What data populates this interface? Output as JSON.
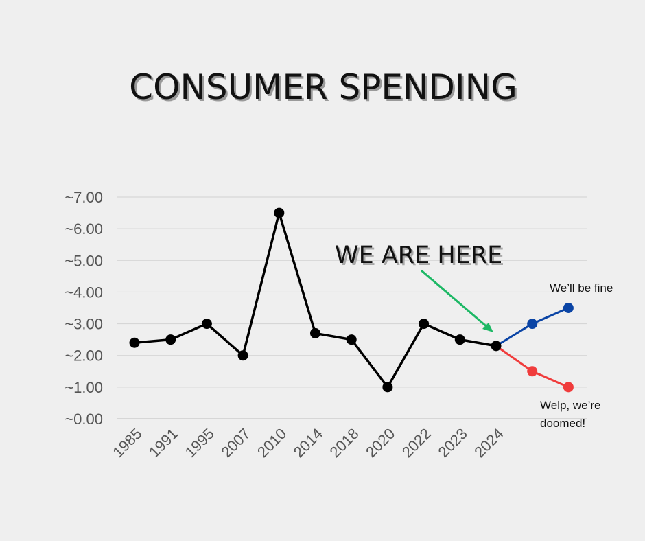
{
  "chart_data": {
    "type": "line",
    "title": "CONSUMER SPENDING",
    "categories": [
      "1985",
      "1991",
      "1995",
      "2007",
      "2010",
      "2014",
      "2018",
      "2020",
      "2022",
      "2023",
      "2024"
    ],
    "y_tick_labels": [
      "~0.00",
      "~1.00",
      "~2.00",
      "~3.00",
      "~4.00",
      "~5.00",
      "~6.00",
      "~7.00"
    ],
    "ylim": [
      0,
      7
    ],
    "grid": true,
    "series": [
      {
        "values": [
          2.4,
          2.5,
          3.0,
          2.0,
          6.5,
          2.7,
          2.5,
          1.0,
          3.0,
          2.5,
          2.3
        ],
        "color": "#000000"
      }
    ],
    "projections": [
      {
        "label": "We’ll be fine",
        "values": [
          3.0,
          3.5
        ],
        "color": "#0a44a5"
      },
      {
        "label": "Welp, we’re doomed!",
        "values": [
          1.5,
          1.0
        ],
        "color": "#f03c3c"
      }
    ],
    "annotation": {
      "text": "WE ARE HERE",
      "arrow_color": "#1db865",
      "points_to": "2024"
    }
  }
}
